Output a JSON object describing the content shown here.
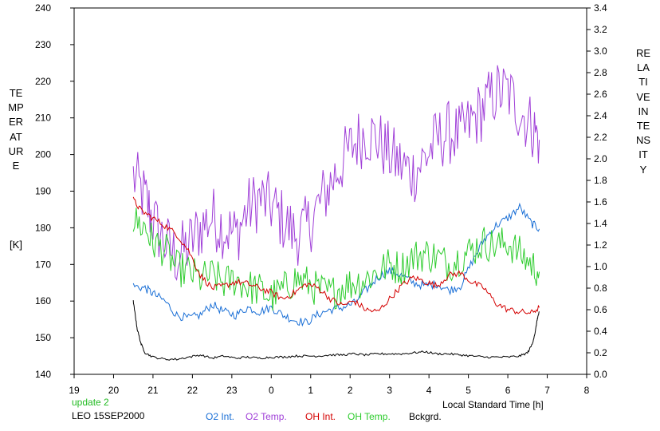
{
  "window": {
    "update_label": "update 2",
    "station_label": "LEO 15SEP2000"
  },
  "axes": {
    "left_label": "TEMPERATURE",
    "left_unit": "[K]",
    "right_label": "RELATIVE  INTENSITY",
    "x_label": "Local Standard Time [h]"
  },
  "colors": {
    "o2_int": "#1a6fd6",
    "o2_temp": "#a040d8",
    "oh_int": "#d40000",
    "oh_temp": "#2ecc2e",
    "background": "#000000",
    "update_text": "#22bb22"
  },
  "chart_data": {
    "type": "line",
    "x_ticks": [
      "19",
      "20",
      "21",
      "22",
      "23",
      "0",
      "1",
      "2",
      "3",
      "4",
      "5",
      "6",
      "7",
      "8"
    ],
    "x_range": [
      19,
      32
    ],
    "y_left_ticks": [
      "140",
      "150",
      "160",
      "170",
      "180",
      "190",
      "200",
      "210",
      "220",
      "230",
      "240"
    ],
    "y_left_range": [
      140,
      240
    ],
    "y_right_ticks": [
      "0.0",
      "0.2",
      "0.4",
      "0.6",
      "0.8",
      "1.0",
      "1.2",
      "1.4",
      "1.6",
      "1.8",
      "2.0",
      "2.2",
      "2.4",
      "2.6",
      "2.8",
      "3.0",
      "3.2",
      "3.4"
    ],
    "y_right_range": [
      0,
      3.4
    ],
    "grid": false,
    "legend_placement": "bottom",
    "series": [
      {
        "name": "O2 Int.",
        "axis": "right",
        "noise": 0.04,
        "x": [
          20.5,
          20.8,
          21.0,
          21.3,
          21.6,
          21.9,
          22.2,
          22.5,
          22.8,
          23.1,
          23.4,
          23.7,
          24.0,
          24.3,
          24.6,
          24.9,
          25.2,
          25.5,
          25.8,
          26.1,
          26.4,
          26.7,
          27.0,
          27.3,
          27.6,
          27.9,
          28.2,
          28.5,
          28.8,
          29.1,
          29.4,
          29.7,
          30.0,
          30.3,
          30.6,
          30.8
        ],
        "y": [
          0.82,
          0.8,
          0.75,
          0.68,
          0.55,
          0.52,
          0.55,
          0.65,
          0.58,
          0.55,
          0.62,
          0.58,
          0.62,
          0.55,
          0.5,
          0.48,
          0.56,
          0.6,
          0.62,
          0.66,
          0.78,
          0.9,
          0.96,
          0.92,
          0.85,
          0.82,
          0.84,
          0.78,
          0.82,
          1.05,
          1.25,
          1.38,
          1.45,
          1.55,
          1.4,
          1.35
        ]
      },
      {
        "name": "O2 Temp.",
        "axis": "left",
        "noise": 9,
        "x": [
          20.5,
          20.8,
          21.0,
          21.3,
          21.6,
          21.9,
          22.2,
          22.5,
          22.8,
          23.1,
          23.4,
          23.7,
          24.0,
          24.3,
          24.6,
          24.9,
          25.2,
          25.5,
          25.8,
          26.1,
          26.4,
          26.7,
          27.0,
          27.3,
          27.6,
          27.9,
          28.2,
          28.5,
          28.8,
          29.1,
          29.4,
          29.7,
          30.0,
          30.3,
          30.6,
          30.8
        ],
        "y": [
          194,
          188,
          182,
          176,
          172,
          175,
          180,
          183,
          180,
          178,
          185,
          188,
          186,
          182,
          178,
          180,
          186,
          192,
          198,
          203,
          206,
          204,
          200,
          197,
          195,
          199,
          204,
          206,
          205,
          209,
          213,
          217,
          217,
          212,
          208,
          204
        ]
      },
      {
        "name": "OH Int.",
        "axis": "right",
        "noise": 0.03,
        "x": [
          20.5,
          20.7,
          21.0,
          21.3,
          21.6,
          21.9,
          22.2,
          22.5,
          22.8,
          23.1,
          23.4,
          23.7,
          24.0,
          24.3,
          24.6,
          24.9,
          25.2,
          25.5,
          25.8,
          26.1,
          26.4,
          26.7,
          27.0,
          27.3,
          27.6,
          27.9,
          28.2,
          28.5,
          28.8,
          29.1,
          29.4,
          29.7,
          30.0,
          30.3,
          30.6,
          30.8
        ],
        "y": [
          1.62,
          1.52,
          1.45,
          1.38,
          1.3,
          1.15,
          0.92,
          0.8,
          0.82,
          0.86,
          0.84,
          0.8,
          0.76,
          0.7,
          0.76,
          0.84,
          0.8,
          0.7,
          0.64,
          0.68,
          0.6,
          0.58,
          0.7,
          0.82,
          0.9,
          0.86,
          0.82,
          0.92,
          0.94,
          0.85,
          0.8,
          0.66,
          0.6,
          0.58,
          0.57,
          0.62
        ]
      },
      {
        "name": "OH Temp.",
        "axis": "left",
        "noise": 5,
        "x": [
          20.5,
          20.8,
          21.0,
          21.3,
          21.6,
          21.9,
          22.2,
          22.5,
          22.8,
          23.1,
          23.4,
          23.7,
          24.0,
          24.3,
          24.6,
          24.9,
          25.2,
          25.5,
          25.8,
          26.1,
          26.4,
          26.7,
          27.0,
          27.3,
          27.6,
          27.9,
          28.2,
          28.5,
          28.8,
          29.1,
          29.4,
          29.7,
          30.0,
          30.3,
          30.6,
          30.8
        ],
        "y": [
          182,
          180,
          176,
          174,
          169,
          168,
          166,
          167,
          165,
          166,
          164,
          163,
          161,
          163,
          166,
          165,
          163,
          162,
          164,
          165,
          166,
          168,
          170,
          169,
          172,
          173,
          172,
          170,
          172,
          174,
          176,
          175,
          176,
          173,
          170,
          168
        ]
      },
      {
        "name": "Bckgrd.",
        "axis": "right",
        "noise": 0.01,
        "x": [
          20.5,
          20.55,
          20.6,
          20.7,
          20.8,
          21.0,
          21.3,
          21.6,
          21.9,
          22.2,
          22.5,
          22.8,
          23.1,
          23.4,
          23.7,
          24.0,
          24.3,
          24.6,
          24.9,
          25.2,
          25.5,
          25.8,
          26.1,
          26.4,
          26.7,
          27.0,
          27.3,
          27.6,
          27.9,
          28.2,
          28.5,
          28.8,
          29.1,
          29.4,
          29.7,
          30.0,
          30.3,
          30.5,
          30.62,
          30.7,
          30.75,
          30.8
        ],
        "y": [
          0.68,
          0.55,
          0.42,
          0.28,
          0.2,
          0.16,
          0.14,
          0.14,
          0.16,
          0.18,
          0.15,
          0.17,
          0.15,
          0.16,
          0.15,
          0.16,
          0.16,
          0.17,
          0.17,
          0.17,
          0.18,
          0.18,
          0.19,
          0.18,
          0.19,
          0.19,
          0.19,
          0.2,
          0.21,
          0.19,
          0.19,
          0.18,
          0.17,
          0.16,
          0.16,
          0.16,
          0.17,
          0.2,
          0.28,
          0.4,
          0.52,
          0.58
        ]
      }
    ]
  }
}
